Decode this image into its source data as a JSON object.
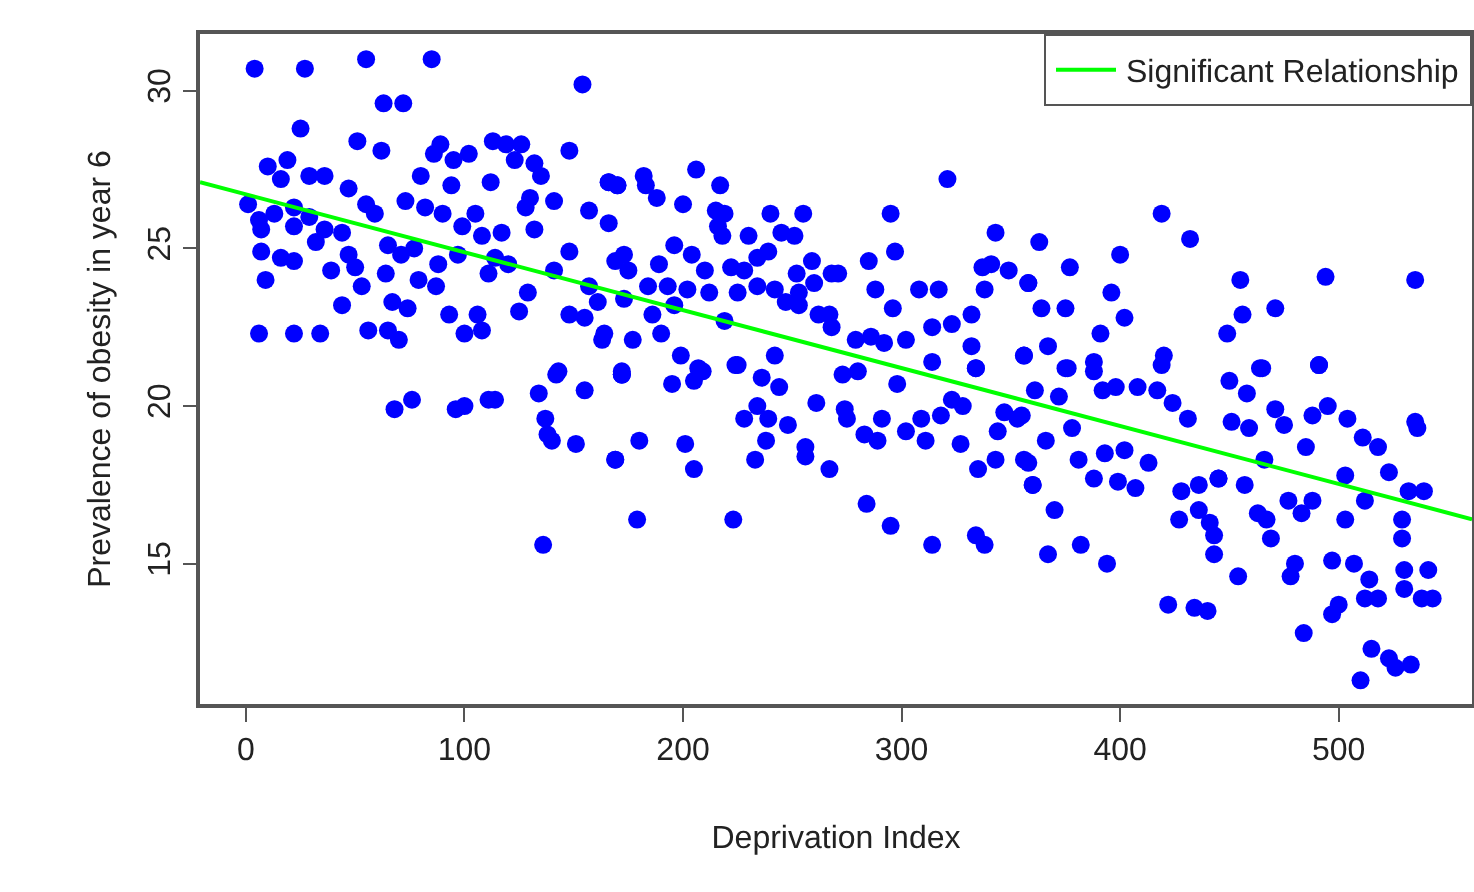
{
  "chart_data": {
    "type": "scatter",
    "xlabel": "Deprivation Index",
    "ylabel": "Prevalence of obesity in year 6",
    "xlim": [
      -21,
      561
    ],
    "ylim": [
      10.55,
      31.8
    ],
    "xticks": [
      0,
      100,
      200,
      300,
      400,
      500
    ],
    "yticks": [
      15,
      20,
      25,
      30
    ],
    "grid": false,
    "legend": "top right",
    "marker": "circle",
    "series": [
      {
        "color": "#0000ff",
        "x": [
          4,
          27,
          55,
          85,
          154,
          63,
          72,
          25,
          51,
          62,
          89,
          86,
          95,
          102,
          113,
          119,
          126,
          123,
          132,
          135,
          148,
          10,
          19,
          16,
          29,
          36,
          47,
          80,
          94,
          112,
          166,
          170,
          130,
          128,
          141,
          73,
          82,
          90,
          105,
          157,
          166,
          1,
          6,
          13,
          22,
          29,
          55,
          59,
          7,
          22,
          36,
          44,
          99,
          108,
          117,
          132,
          7,
          16,
          22,
          32,
          39,
          50,
          47,
          65,
          71,
          77,
          88,
          97,
          114,
          120,
          111,
          141,
          129,
          148,
          157,
          161,
          169,
          9,
          53,
          64,
          79,
          87,
          44,
          67,
          74,
          93,
          106,
          125,
          148,
          155,
          6,
          22,
          34,
          56,
          65,
          70,
          100,
          108,
          163,
          143,
          172,
          68,
          76,
          96,
          100,
          111,
          114,
          134,
          142,
          155,
          172,
          137,
          138,
          140,
          151,
          169,
          136,
          206,
          217,
          166,
          170,
          182,
          183,
          188,
          200,
          321,
          215,
          219,
          216,
          218,
          240,
          255,
          295,
          230,
          245,
          251,
          343,
          196,
          204,
          173,
          175,
          189,
          210,
          222,
          228,
          234,
          239,
          259,
          268,
          285,
          297,
          337,
          341,
          349,
          358,
          184,
          193,
          202,
          212,
          225,
          234,
          242,
          252,
          253,
          260,
          271,
          288,
          296,
          308,
          317,
          338,
          332,
          173,
          196,
          186,
          164,
          177,
          190,
          199,
          219,
          247,
          253,
          262,
          268,
          267,
          279,
          286,
          292,
          302,
          314,
          323,
          332,
          356,
          242,
          224,
          172,
          207,
          314,
          334,
          172,
          195,
          205,
          209,
          225,
          236,
          244,
          273,
          280,
          298,
          334,
          261,
          228,
          234,
          239,
          248,
          274,
          275,
          283,
          291,
          289,
          302,
          309,
          311,
          318,
          323,
          328,
          347,
          353,
          344,
          356,
          360,
          327,
          335,
          343,
          180,
          169,
          201,
          205,
          233,
          238,
          256,
          256,
          267,
          179,
          223,
          284,
          295,
          314,
          334,
          338,
          419,
          432,
          363,
          377,
          400,
          358,
          396,
          455,
          494,
          535,
          364,
          375,
          391,
          402,
          456,
          471,
          449,
          356,
          367,
          376,
          388,
          420,
          464,
          491,
          375,
          388,
          419,
          465,
          491,
          361,
          372,
          392,
          398,
          408,
          417,
          424,
          431,
          450,
          458,
          471,
          488,
          495,
          504,
          451,
          459,
          475,
          485,
          511,
          518,
          535,
          536,
          355,
          366,
          378,
          393,
          402,
          413,
          381,
          388,
          399,
          407,
          428,
          436,
          445,
          457,
          463,
          466,
          477,
          488,
          483,
          503,
          523,
          532,
          539,
          512,
          529,
          503,
          358,
          360,
          370,
          427,
          436,
          441,
          443,
          445,
          467,
          469,
          529,
          367,
          382,
          394,
          443,
          454,
          480,
          497,
          507,
          478,
          530,
          541,
          514,
          518,
          530,
          543,
          538,
          512,
          422,
          434,
          440,
          497,
          500,
          484,
          515,
          523,
          526,
          533,
          510
        ],
        "values": [
          30.7,
          30.7,
          31.0,
          31.0,
          30.2,
          29.6,
          29.6,
          28.8,
          28.4,
          28.1,
          28.3,
          28.0,
          27.8,
          28.0,
          28.4,
          28.3,
          28.3,
          27.8,
          27.7,
          27.3,
          28.1,
          27.6,
          27.8,
          27.2,
          27.3,
          27.3,
          26.9,
          27.3,
          27.0,
          27.1,
          27.1,
          27.0,
          26.6,
          26.3,
          26.5,
          26.5,
          26.3,
          26.1,
          26.1,
          26.2,
          25.8,
          26.4,
          25.9,
          26.1,
          26.3,
          26.0,
          26.4,
          26.1,
          25.6,
          25.7,
          25.6,
          25.5,
          25.7,
          25.4,
          25.5,
          25.6,
          24.9,
          24.7,
          24.6,
          25.2,
          24.3,
          24.4,
          24.8,
          25.1,
          24.8,
          25.0,
          24.5,
          24.8,
          24.7,
          24.5,
          24.2,
          24.3,
          23.6,
          24.9,
          23.8,
          23.3,
          24.6,
          24.0,
          23.8,
          24.2,
          24.0,
          23.8,
          23.2,
          23.3,
          23.1,
          22.9,
          22.9,
          23.0,
          22.9,
          22.8,
          22.3,
          22.3,
          22.3,
          22.4,
          22.4,
          22.1,
          22.3,
          22.4,
          22.1,
          21.1,
          21.1,
          19.9,
          20.2,
          19.9,
          20.0,
          20.2,
          20.2,
          20.4,
          21.0,
          20.5,
          21.0,
          19.6,
          19.1,
          18.9,
          18.8,
          18.3,
          15.6,
          27.5,
          27.0,
          27.1,
          27.0,
          27.3,
          27.0,
          26.6,
          26.4,
          27.2,
          26.2,
          26.1,
          25.7,
          25.4,
          26.1,
          26.1,
          26.1,
          25.4,
          25.5,
          25.4,
          25.5,
          25.1,
          24.8,
          24.8,
          24.3,
          24.5,
          24.3,
          24.4,
          24.3,
          24.7,
          24.9,
          24.6,
          24.2,
          24.6,
          24.9,
          24.4,
          24.5,
          24.3,
          23.9,
          23.8,
          23.8,
          23.7,
          23.6,
          23.6,
          23.8,
          23.7,
          24.2,
          23.6,
          23.9,
          24.2,
          23.7,
          23.1,
          23.7,
          23.7,
          23.7,
          22.9,
          23.4,
          23.2,
          22.9,
          22.3,
          22.1,
          22.3,
          21.6,
          22.7,
          23.3,
          23.2,
          22.9,
          22.5,
          22.9,
          22.1,
          22.2,
          22.0,
          22.1,
          22.5,
          22.6,
          21.9,
          21.6,
          21.6,
          21.3,
          21.0,
          21.2,
          21.4,
          21.2,
          21.0,
          20.7,
          20.8,
          21.1,
          21.3,
          20.9,
          20.6,
          21.0,
          21.1,
          20.7,
          21.2,
          20.1,
          19.6,
          20.0,
          19.6,
          19.4,
          19.9,
          19.6,
          19.1,
          19.6,
          18.9,
          19.2,
          19.6,
          18.9,
          19.7,
          20.2,
          20.0,
          19.8,
          19.6,
          19.2,
          18.3,
          17.5,
          18.8,
          18.0,
          18.3,
          18.9,
          18.3,
          18.8,
          18.0,
          18.3,
          18.9,
          18.7,
          18.4,
          18.0,
          16.4,
          16.4,
          16.9,
          16.2,
          15.6,
          15.9,
          15.6,
          26.1,
          25.3,
          25.2,
          24.4,
          24.8,
          23.9,
          23.6,
          24.0,
          24.1,
          24.0,
          23.1,
          23.1,
          22.3,
          22.8,
          22.9,
          23.1,
          22.3,
          21.6,
          21.9,
          21.2,
          21.4,
          21.6,
          21.2,
          21.3,
          21.2,
          21.1,
          21.3,
          21.2,
          21.3,
          20.5,
          20.3,
          20.5,
          20.6,
          20.6,
          20.5,
          20.1,
          19.6,
          20.8,
          20.4,
          19.9,
          19.7,
          20.0,
          19.6,
          19.5,
          19.3,
          19.4,
          18.7,
          19.0,
          18.7,
          19.5,
          19.3,
          19.7,
          18.9,
          19.3,
          18.5,
          18.6,
          18.2,
          18.3,
          17.7,
          17.6,
          17.4,
          17.3,
          17.5,
          17.7,
          17.5,
          16.6,
          18.3,
          17.0,
          17.0,
          16.6,
          17.8,
          17.9,
          17.3,
          17.3,
          17.0,
          16.4,
          16.4,
          18.2,
          17.5,
          16.7,
          16.4,
          16.7,
          16.3,
          15.9,
          17.7,
          16.4,
          15.8,
          15.8,
          15.3,
          15.6,
          15.0,
          15.3,
          14.6,
          15.0,
          15.1,
          15.0,
          14.6,
          14.8,
          14.8,
          14.5,
          13.9,
          14.2,
          13.9,
          13.9,
          13.9,
          13.7,
          13.6,
          13.5,
          13.4,
          13.7,
          12.8,
          12.3,
          12.0,
          11.7,
          11.8,
          11.3
        ]
      },
      {
        "type": "line",
        "name": "Significant Relationship",
        "color": "#00ff00",
        "marker": "none",
        "line_style": "solid",
        "x": [
          -21,
          561
        ],
        "values": [
          27.1,
          16.41
        ]
      }
    ]
  }
}
